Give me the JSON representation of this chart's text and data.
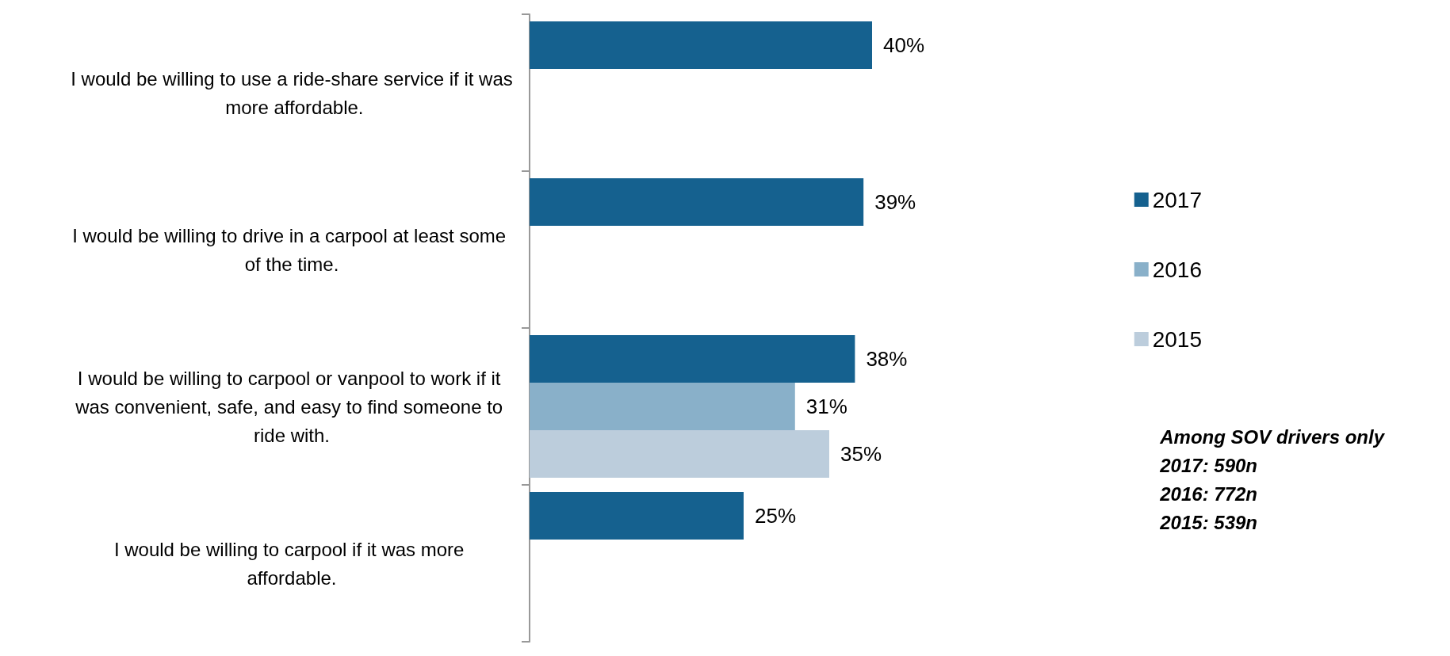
{
  "chart_data": {
    "type": "bar",
    "orientation": "horizontal",
    "categories": [
      "I would be willing to use a ride-share service if it was more affordable.",
      "I would be willing to drive in a carpool at least some of the time.",
      "I would be willing to carpool or vanpool to work if it was convenient, safe, and easy to find someone to ride with.",
      "I would be willing to carpool if it was more affordable."
    ],
    "series": [
      {
        "name": "2017",
        "color": "#15618f",
        "values": [
          40,
          39,
          38,
          25
        ],
        "value_labels": [
          "40%",
          "39%",
          "38%",
          "25%"
        ]
      },
      {
        "name": "2016",
        "color": "#89b0c9",
        "values": [
          null,
          null,
          31,
          null
        ],
        "value_labels": [
          null,
          null,
          "31%",
          null
        ]
      },
      {
        "name": "2015",
        "color": "#bccddc",
        "values": [
          null,
          null,
          35,
          null
        ],
        "value_labels": [
          null,
          null,
          "35%",
          null
        ]
      }
    ],
    "legend": "right",
    "grid": false,
    "annotations": [
      "Among SOV drivers only",
      "2017: 590n",
      "2016: 772n",
      "2015: 539n"
    ]
  }
}
